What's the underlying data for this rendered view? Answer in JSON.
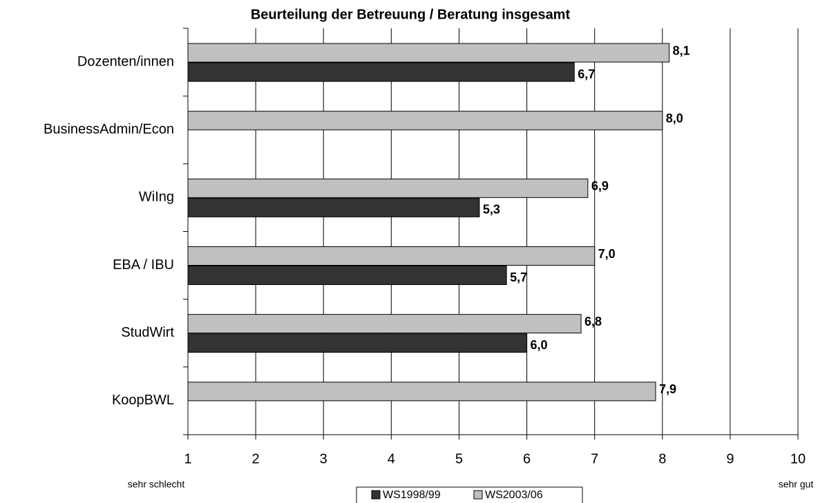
{
  "chart_data": {
    "type": "hbar",
    "title": "Beurteilung der Betreuung / Beratung insgesamt",
    "categories": [
      "Dozenten/innen",
      "BusinessAdmin/Econ",
      "WiIng",
      "EBA / IBU",
      "StudWirt",
      "KoopBWL"
    ],
    "series": [
      {
        "name": "WS1998/99",
        "color": "#333333",
        "values": [
          6.7,
          null,
          5.3,
          5.7,
          6.0,
          null
        ],
        "value_labels": [
          "6,7",
          null,
          "5,3",
          "5,7",
          "6,0",
          null
        ]
      },
      {
        "name": "WS2003/06",
        "color": "#c0c0c0",
        "values": [
          8.1,
          8.0,
          6.9,
          7.0,
          6.8,
          7.9
        ],
        "value_labels": [
          "8,1",
          "8,0",
          "6,9",
          "7,0",
          "6,8",
          "7,9"
        ]
      }
    ],
    "xlim": [
      1,
      10
    ],
    "xticks": [
      1,
      2,
      3,
      4,
      5,
      6,
      7,
      8,
      9,
      10
    ],
    "grid": true,
    "annotations": [
      "sehr schlecht",
      "sehr gut"
    ],
    "legend": "bottom"
  }
}
